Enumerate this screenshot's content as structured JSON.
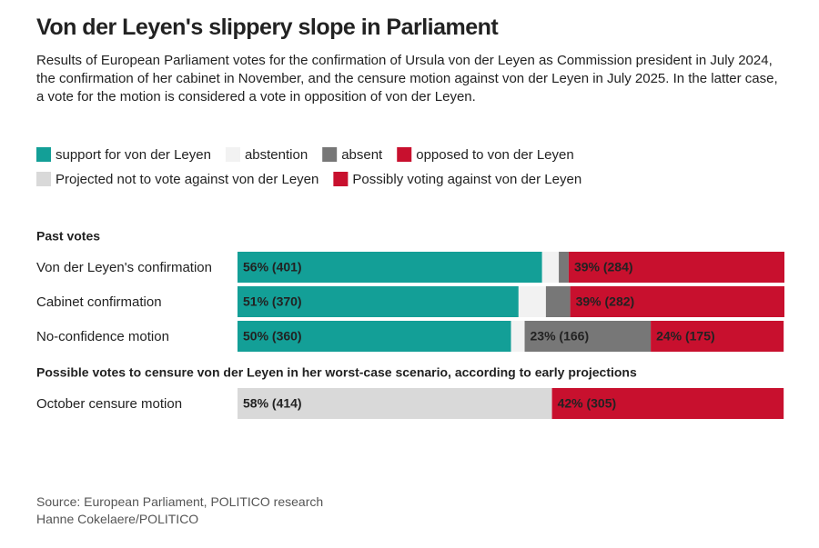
{
  "chart_data": {
    "type": "stacked-bar-horizontal",
    "title": "Von der Leyen's slippery slope in Parliament",
    "subtitle": "Results of European Parliament votes for the confirmation of Ursula von der Leyen as Commission president in July 2024, the confirmation of her cabinet in November, and the censure motion against von der Leyen in July 2025. In the latter case, a vote for the motion is considered a vote in opposition of von der Leyen.",
    "source": "Source: European Parliament, POLITICO research",
    "credit": "Hanne Cokelaere/POLITICO",
    "xlim": [
      0,
      720
    ],
    "sections": [
      {
        "title": "Past votes",
        "categories": [
          "Von der Leyen's confirmation",
          "Cabinet confirmation",
          "No-confidence motion"
        ]
      },
      {
        "title": "Possible votes to censure von der Leyen in her worst-case scenario, according to early projections",
        "categories": [
          "October censure motion"
        ]
      }
    ],
    "series": [
      {
        "name": "support for von der Leyen",
        "color": "#139f97",
        "label_color": "#ffffff",
        "values": [
          401,
          370,
          360,
          null
        ],
        "value_labels": [
          "56% (401)",
          "51% (370)",
          "50% (360)",
          null
        ]
      },
      {
        "name": "abstention",
        "color": "#f2f2f2",
        "values": [
          22,
          36,
          18,
          null
        ]
      },
      {
        "name": "absent",
        "color": "#777777",
        "label_color": "#ffffff",
        "values": [
          13,
          32,
          166,
          null
        ],
        "value_labels": [
          null,
          null,
          "23% (166)",
          null
        ]
      },
      {
        "name": "opposed to von der Leyen",
        "color": "#c8102e",
        "label_color": "#ffffff",
        "values": [
          284,
          282,
          175,
          null
        ],
        "value_labels": [
          "39% (284)",
          "39% (282)",
          "24% (175)",
          null
        ]
      },
      {
        "name": "Projected not to vote against von der Leyen",
        "color": "#d9d9d9",
        "label_color": "#555555",
        "values": [
          null,
          null,
          null,
          414
        ],
        "value_labels": [
          null,
          null,
          null,
          "58% (414)"
        ]
      },
      {
        "name": "Possibly voting against von der Leyen",
        "color": "#c8102e",
        "label_color": "#ffffff",
        "values": [
          null,
          null,
          null,
          305
        ],
        "value_labels": [
          null,
          null,
          null,
          "42% (305)"
        ]
      }
    ]
  }
}
